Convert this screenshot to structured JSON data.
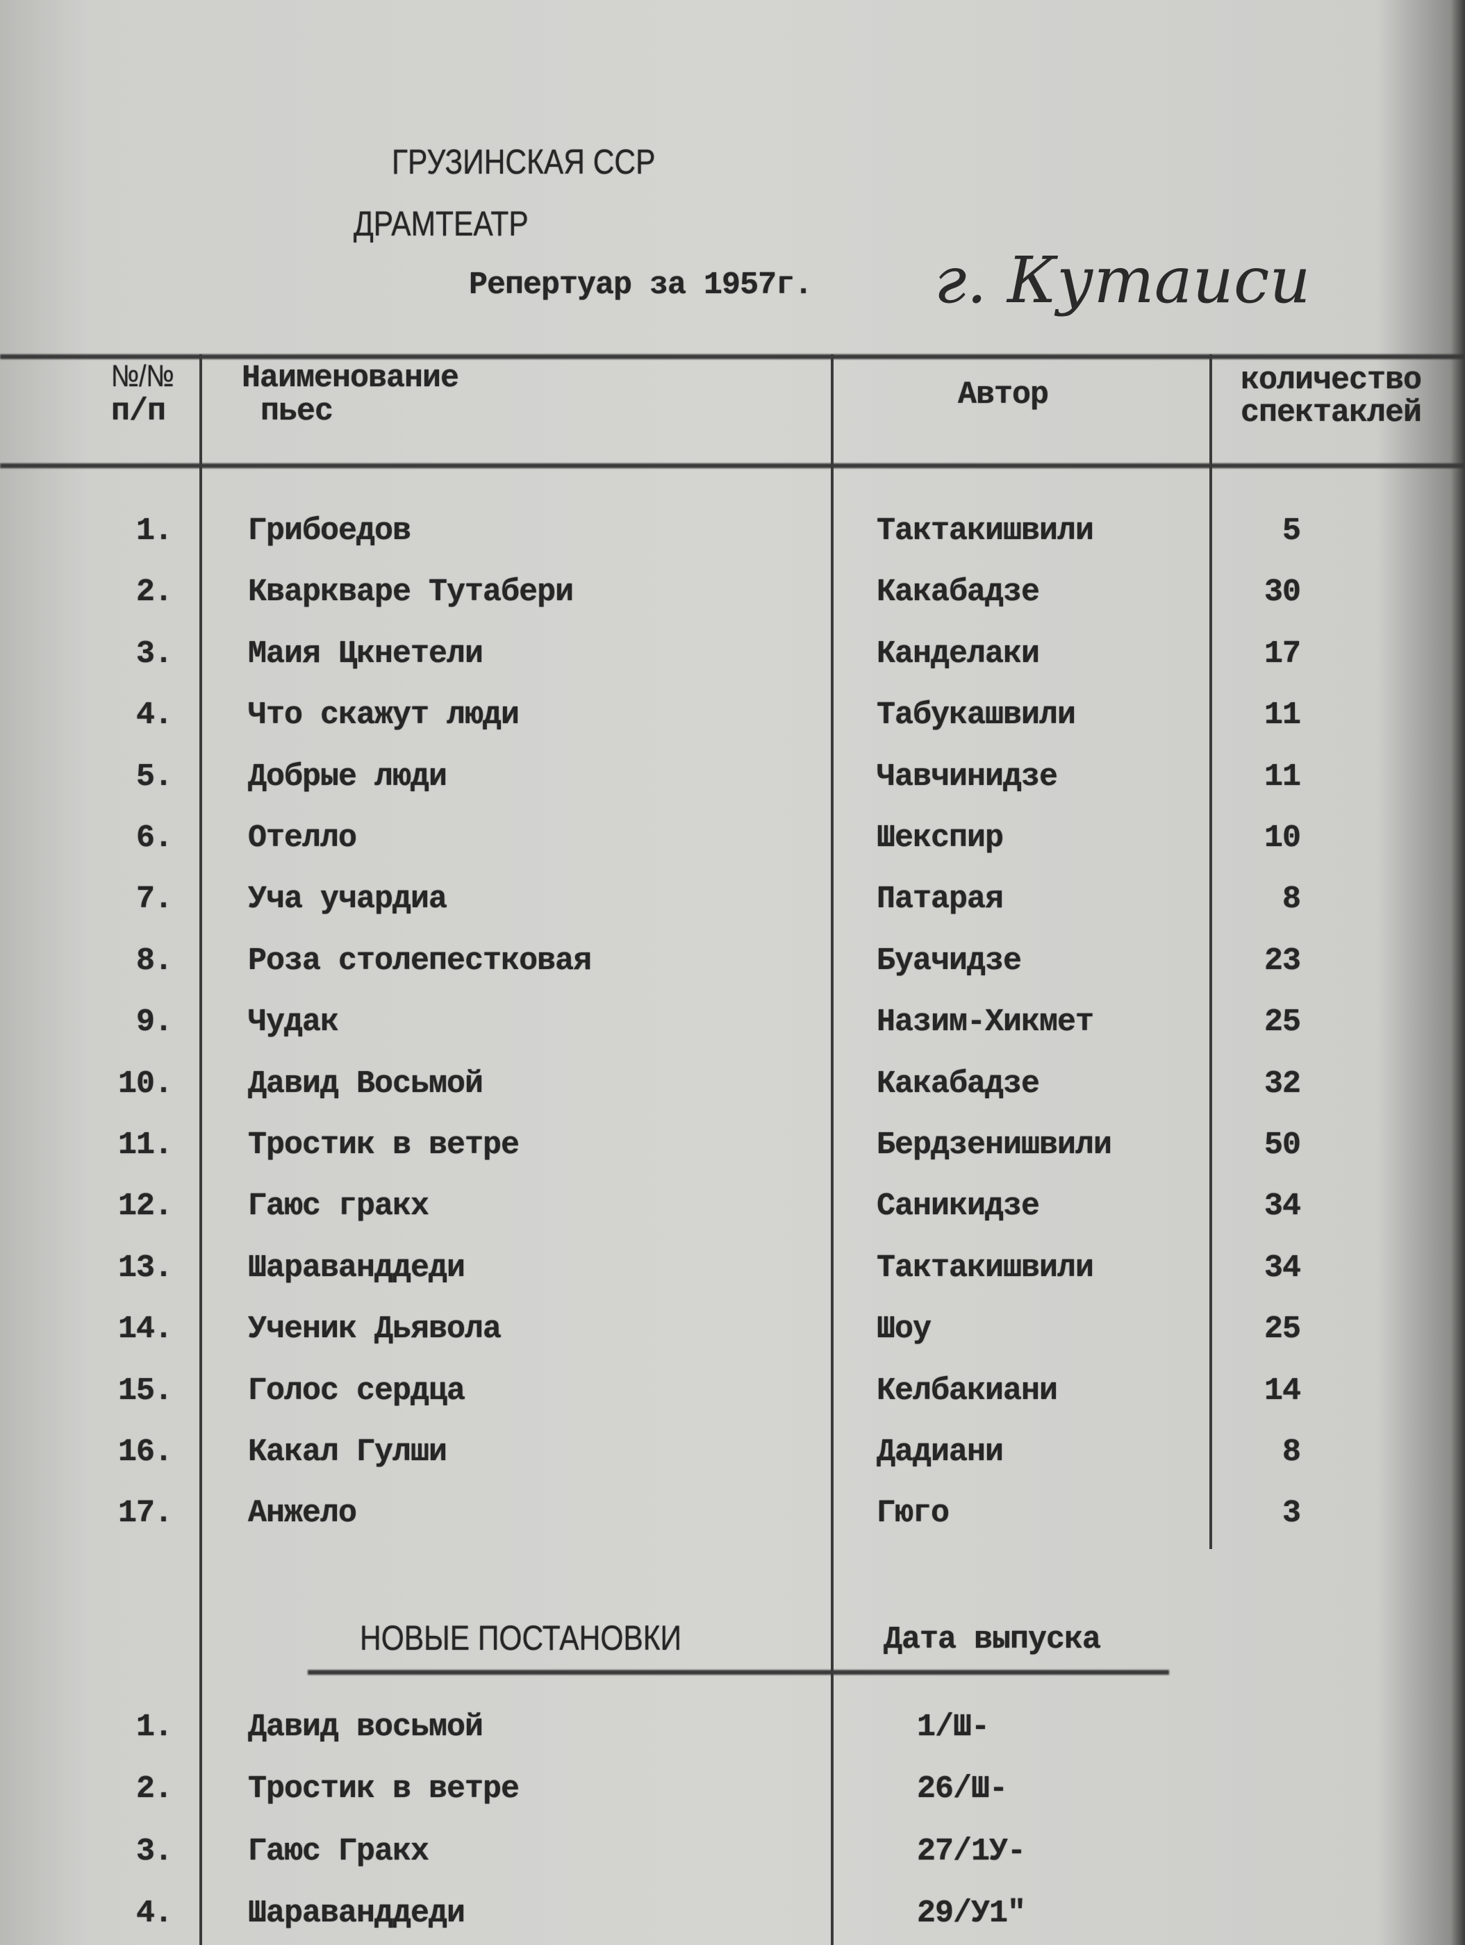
{
  "header": {
    "republic": "ГРУЗИНСКАЯ ССР",
    "theatre": "ДРАМТЕАТР",
    "repertoire": "Репертуар за 1957г.",
    "city_handwritten": "г. Кутаиси"
  },
  "table": {
    "columns": {
      "num_1": "№/№",
      "num_2": "п/п",
      "title_1": "Наименование",
      "title_2": "пьес",
      "author": "Автор",
      "count_1": "количество",
      "count_2": "спектаклей"
    },
    "rows": [
      {
        "n": "1.",
        "title": "Грибоедов",
        "author": "Тактакишвили",
        "count": "5"
      },
      {
        "n": "2.",
        "title": "Кваркваре Тутабери",
        "author": "Какабадзе",
        "count": "30"
      },
      {
        "n": "3.",
        "title": "Маия Цкнетели",
        "author": "Канделаки",
        "count": "17"
      },
      {
        "n": "4.",
        "title": "Что скажут люди",
        "author": "Табукашвили",
        "count": "11"
      },
      {
        "n": "5.",
        "title": "Добрые люди",
        "author": "Чавчинидзе",
        "count": "11"
      },
      {
        "n": "6.",
        "title": "Отелло",
        "author": "Шекспир",
        "count": "10"
      },
      {
        "n": "7.",
        "title": "Уча учардиа",
        "author": "Патарая",
        "count": "8"
      },
      {
        "n": "8.",
        "title": "Роза столепестковая",
        "author": "Буачидзе",
        "count": "23"
      },
      {
        "n": "9.",
        "title": "Чудак",
        "author": "Назим-Хикмет",
        "count": "25"
      },
      {
        "n": "10.",
        "title": "Давид Восьмой",
        "author": "Какабадзе",
        "count": "32"
      },
      {
        "n": "11.",
        "title": "Тростик в ветре",
        "author": "Бердзенишвили",
        "count": "50"
      },
      {
        "n": "12.",
        "title": "Гаюс гракх",
        "author": "Саникидзе",
        "count": "34"
      },
      {
        "n": "13.",
        "title": "Шараванддеди",
        "author": "Тактакишвили",
        "count": "34"
      },
      {
        "n": "14.",
        "title": "Ученик Дьявола",
        "author": "Шоу",
        "count": "25"
      },
      {
        "n": "15.",
        "title": "Голос сердца",
        "author": "Келбакиани",
        "count": "14"
      },
      {
        "n": "16.",
        "title": "Какал Гулши",
        "author": "Дадиани",
        "count": "8"
      },
      {
        "n": "17.",
        "title": "Анжело",
        "author": "Гюго",
        "count": "3"
      }
    ]
  },
  "new_productions": {
    "heading": "НОВЫЕ ПОСТАНОВКИ",
    "date_heading": "Дата выпуска",
    "rows": [
      {
        "n": "1.",
        "title": "Давид восьмой",
        "date": "1/Ш-"
      },
      {
        "n": "2.",
        "title": "Тростик в ветре",
        "date": "26/Ш-"
      },
      {
        "n": "3.",
        "title": "Гаюс Гракх",
        "date": "27/1У-"
      },
      {
        "n": "4.",
        "title": "Шараванддеди",
        "date": "29/У1\""
      }
    ]
  }
}
